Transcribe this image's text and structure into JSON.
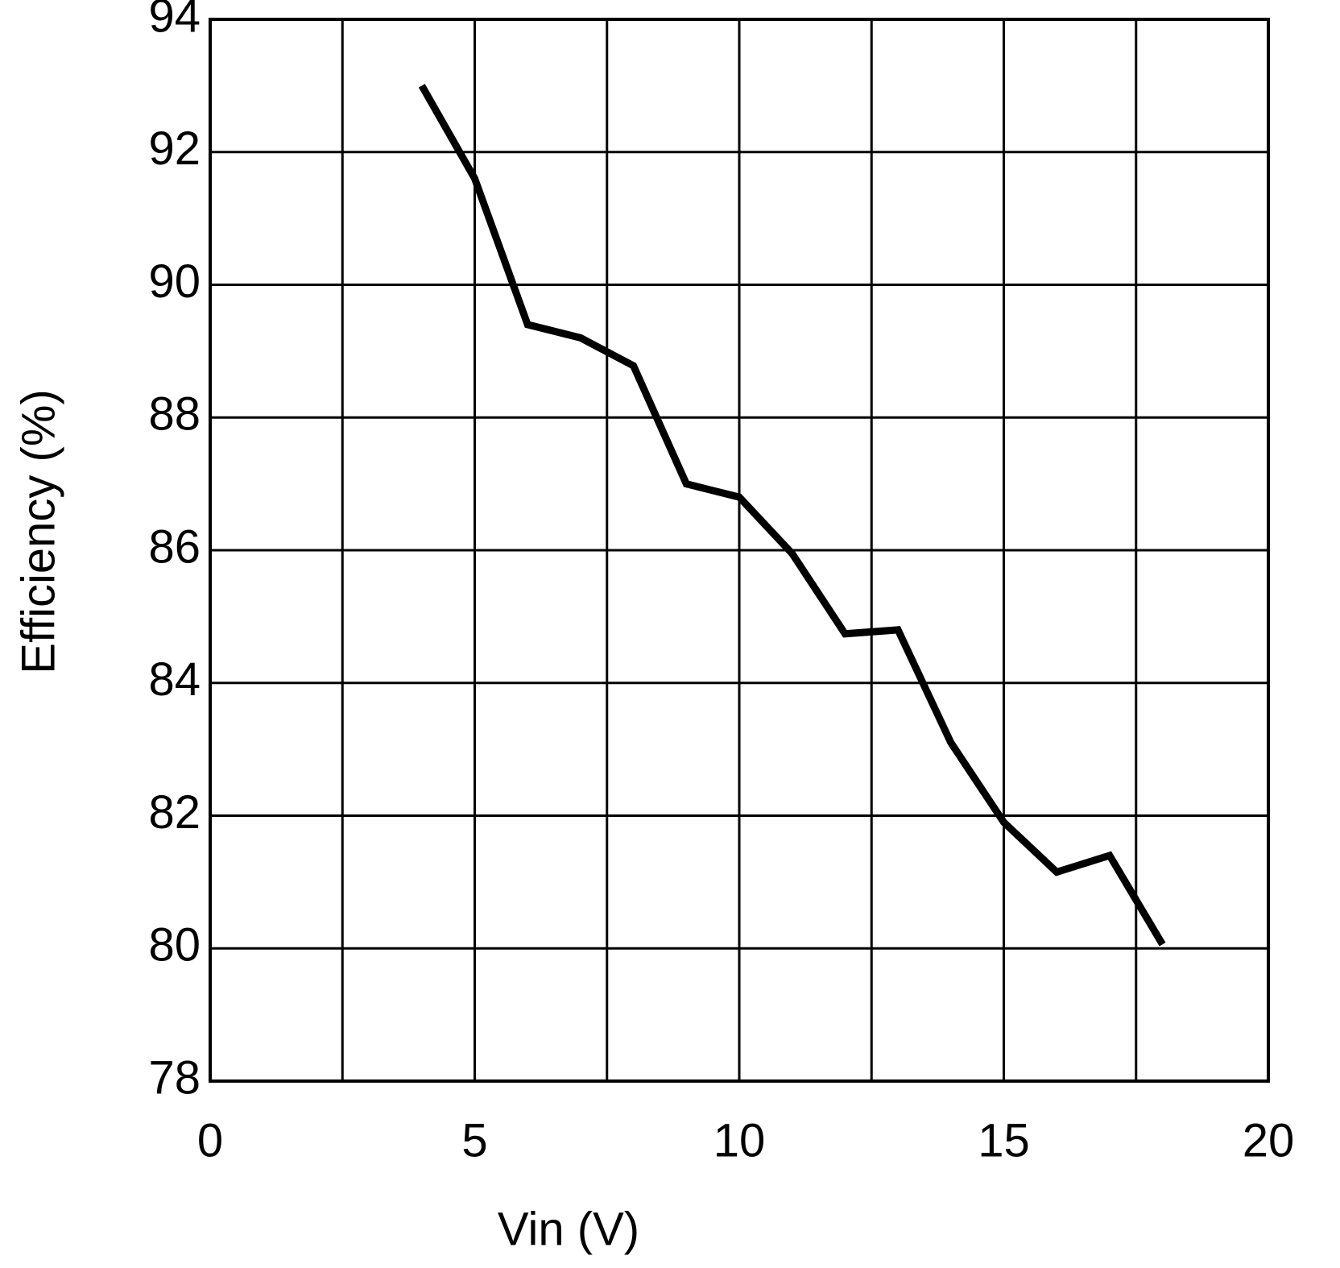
{
  "chart_data": {
    "type": "line",
    "x_label": "Vin (V)",
    "y_label": "Efficiency (%)",
    "x": [
      4,
      5,
      6,
      7,
      8,
      9,
      10,
      11,
      12,
      13,
      14,
      15,
      16,
      17,
      18
    ],
    "series": [
      {
        "color": "#000000",
        "values": [
          93.0,
          91.6,
          89.4,
          89.2,
          88.78,
          87.0,
          86.8,
          85.95,
          84.74,
          84.8,
          83.1,
          81.9,
          81.15,
          81.4,
          80.06
        ]
      }
    ],
    "xlim": [
      0,
      20
    ],
    "xticks": [
      0,
      5,
      10,
      15,
      20
    ],
    "xminorticks": [
      2.5,
      7.5,
      12.5,
      17.5
    ],
    "ylim": [
      78,
      94
    ],
    "yticks": [
      78,
      80,
      82,
      84,
      86,
      88,
      90,
      92,
      94
    ],
    "grid": true
  }
}
